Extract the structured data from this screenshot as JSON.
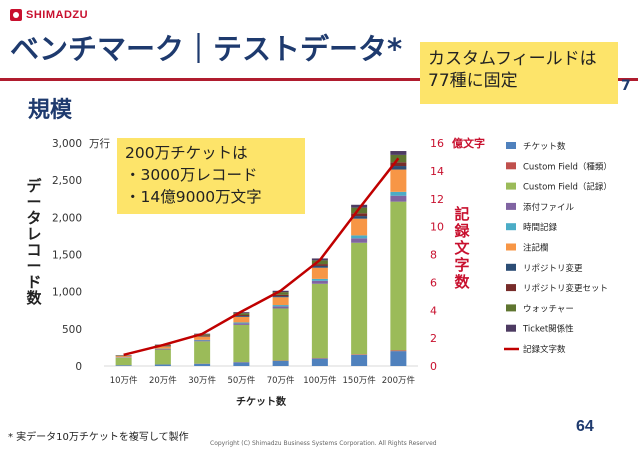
{
  "brand": "SHIMADZU",
  "slide": {
    "title": "ベンチマーク｜テストデータ*",
    "heading": "規模",
    "page_number": "64",
    "page_number_top": "7",
    "footnote": "* 実データ10万チケットを複写して製作",
    "copyright": "Copyright (C) Shimadzu Business Systems Corporation. All Rights Reserved"
  },
  "callouts": {
    "top": [
      "カスタムフィールドは",
      "77種に固定"
    ],
    "main": [
      "200万チケットは",
      "・3000万レコード",
      "・14億9000万文字"
    ]
  },
  "colors": {
    "title": "#1e3a6e",
    "accent_red": "#c8102e",
    "callout_bg": "#fde46a"
  },
  "chart_data": {
    "type": "bar",
    "stacked": true,
    "categories": [
      "10万件",
      "20万件",
      "30万件",
      "50万件",
      "70万件",
      "100万件",
      "150万件",
      "200万件"
    ],
    "xlabel": "チケット数",
    "ylabel": "データレコード数",
    "y_unit": "万行",
    "ylim": [
      0,
      3000
    ],
    "y_ticks": [
      0,
      500,
      1000,
      1500,
      2000,
      2500,
      3000
    ],
    "y_tick_labels": [
      "0",
      "500",
      "1,000",
      "1,500",
      "2,000",
      "2,500",
      "3,000"
    ],
    "y2label": "記録文字数",
    "y2_unit": "億文字",
    "y2lim": [
      0,
      16
    ],
    "y2_ticks": [
      0,
      2,
      4,
      6,
      8,
      10,
      12,
      14,
      16
    ],
    "legend_position": "right",
    "series": [
      {
        "name": "チケット数",
        "color": "#4f81bd",
        "values": [
          10,
          20,
          30,
          50,
          70,
          100,
          150,
          200
        ]
      },
      {
        "name": "Custom Field（種類）",
        "color": "#c0504d",
        "values": [
          1,
          1,
          2,
          3,
          4,
          6,
          8,
          11
        ]
      },
      {
        "name": "Custom Field（記録）",
        "color": "#9bbb59",
        "values": [
          100,
          200,
          300,
          500,
          700,
          1000,
          1500,
          2000
        ]
      },
      {
        "name": "添付ファイル",
        "color": "#8064a2",
        "values": [
          4,
          8,
          12,
          20,
          28,
          40,
          60,
          80
        ]
      },
      {
        "name": "時間記録",
        "color": "#4bacc6",
        "values": [
          3,
          5,
          8,
          13,
          18,
          26,
          39,
          52
        ]
      },
      {
        "name": "注記欄",
        "color": "#f79646",
        "values": [
          15,
          30,
          45,
          75,
          105,
          150,
          225,
          300
        ]
      },
      {
        "name": "リポジトリ変更",
        "color": "#2c4d75",
        "values": [
          2,
          5,
          7,
          12,
          16,
          24,
          35,
          47
        ]
      },
      {
        "name": "リポジトリ変更セット",
        "color": "#772c2a",
        "values": [
          3,
          5,
          8,
          13,
          18,
          25,
          38,
          50
        ]
      },
      {
        "name": "ウォッチャー",
        "color": "#5f7530",
        "values": [
          5,
          10,
          15,
          25,
          35,
          50,
          75,
          100
        ]
      },
      {
        "name": "Ticket関係性",
        "color": "#4d3b62",
        "values": [
          3,
          5,
          8,
          13,
          18,
          26,
          39,
          52
        ]
      }
    ],
    "line_series": {
      "name": "記録文字数",
      "color": "#c00000",
      "axis": "y2",
      "values": [
        0.8,
        1.5,
        2.3,
        3.9,
        5.4,
        7.6,
        11.3,
        14.9
      ]
    }
  }
}
